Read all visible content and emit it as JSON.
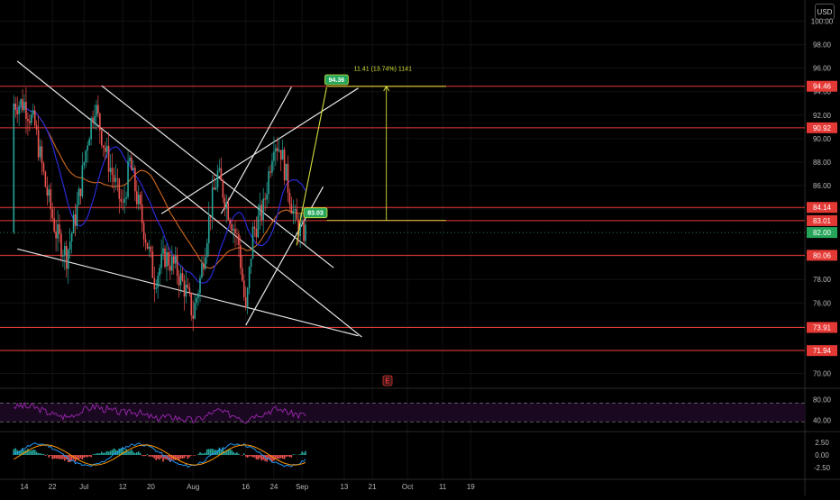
{
  "currency": "USD",
  "colors": {
    "background": "#000000",
    "level_line": "#e53935",
    "level_badge": "#e53935",
    "current_badge": "#26a65b",
    "trendline": "#e8e8e8",
    "projection": "#d8df3c",
    "ma_orange": "#d2691e",
    "ma_blue": "#2a2ad8",
    "rsi": "#9c27b0",
    "candle_up": "#26a69a",
    "candle_down": "#ef5350"
  },
  "earnings_marker": "E",
  "chart_data": [
    {
      "type": "candlestick",
      "title": "",
      "y_axis_ticks": [
        "100.00",
        "98.00",
        "96.00",
        "94.00",
        "92.00",
        "90.00",
        "88.00",
        "86.00",
        "84.00",
        "80.00",
        "78.00",
        "76.00",
        "74.00",
        "72.00",
        "70.00"
      ],
      "ylim": [
        68.5,
        101.5
      ],
      "x_axis_ticks": [
        "14",
        "22",
        "Jul",
        "12",
        "20",
        "Aug",
        "16",
        "24",
        "Sep",
        "13",
        "21",
        "Oct",
        "11",
        "19"
      ],
      "horizontal_levels": [
        "94.46",
        "90.92",
        "84.14",
        "83.01",
        "80.06",
        "73.91",
        "71.94"
      ],
      "current_price": "82.00",
      "projection": {
        "targets": [
          "94.36",
          "83.03"
        ],
        "measure_label": "11.41 (13.74%) 1141"
      },
      "moving_averages": [
        "orange",
        "blue"
      ]
    },
    {
      "type": "line",
      "indicator": "oscillator",
      "y_axis_ticks": [
        "80.00",
        "40.00"
      ],
      "ylim": [
        20,
        100
      ],
      "bands": [
        73,
        37
      ]
    },
    {
      "type": "histogram",
      "indicator": "macd",
      "y_axis_ticks": [
        "2.50",
        "0.00",
        "-2.50"
      ],
      "ylim": [
        -4.5,
        4.5
      ]
    }
  ]
}
